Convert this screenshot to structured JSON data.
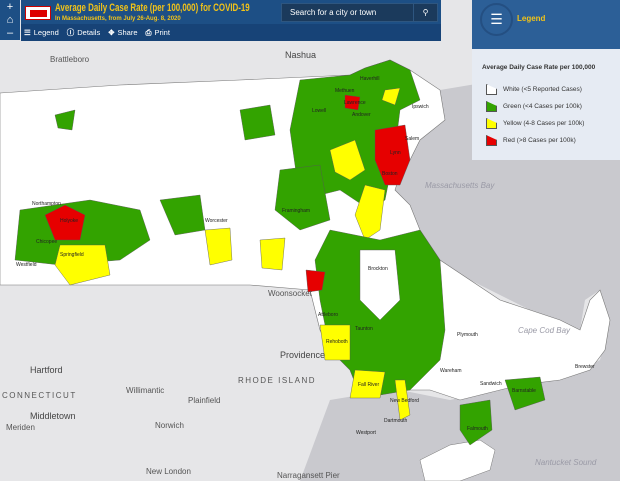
{
  "header": {
    "title": "Average Daily Case Rate (per 100,000) for COVID-19",
    "subtitle": "In Massachusetts, from July 26-Aug. 8, 2020",
    "logo_text": "MASS.gov"
  },
  "toolbar": {
    "legend": "Legend",
    "details": "Details",
    "share": "Share",
    "print": "Print"
  },
  "zoom": {
    "in": "+",
    "home": "⌂",
    "out": "–"
  },
  "search": {
    "placeholder": "Search for a city or town"
  },
  "legend": {
    "title": "Legend",
    "subtitle": "Average Daily Case Rate per 100,000",
    "items": [
      {
        "label": "White (<5 Reported Cases)",
        "color": "#ffffff"
      },
      {
        "label": "Green (<4 Cases per 100k)",
        "color": "#33a300"
      },
      {
        "label": "Yellow (4-8 Cases per 100k)",
        "color": "#ffff00"
      },
      {
        "label": "Red (>8 Cases per 100k)",
        "color": "#e60000"
      }
    ]
  },
  "basemap": {
    "nashua": "Nashua",
    "brattleboro": "Brattleboro",
    "woonsocket": "Woonsocket",
    "providence": "Providence",
    "hartford": "Hartford",
    "willimantic": "Willimantic",
    "plainfield": "Plainfield",
    "connecticut": "CONNECTICUT",
    "rhode_island": "RHODE ISLAND",
    "middletown": "Middletown",
    "meriden": "Meriden",
    "norwich": "Norwich",
    "new_london": "New London",
    "narragansett": "Narragansett Pier",
    "cape_cod_bay": "Cape Cod Bay",
    "massachusetts_bay": "Massachusetts Bay",
    "nantucket_sound": "Nantucket Sound"
  },
  "towns": [
    "Haverhill",
    "Lawrence",
    "Andover",
    "Lowell",
    "Methuen",
    "Boston",
    "Worcester",
    "Springfield",
    "Holyoke",
    "Chicopee",
    "Northampton",
    "Westfield",
    "Framingham",
    "Brockton",
    "Taunton",
    "Plymouth",
    "Fall River",
    "New Bedford",
    "Dartmouth",
    "Westport",
    "Barnstable",
    "Falmouth",
    "Sandwich",
    "Attleboro",
    "Rehoboth",
    "Salem",
    "Lynn",
    "Ipswich",
    "Wareham",
    "Brewster"
  ]
}
